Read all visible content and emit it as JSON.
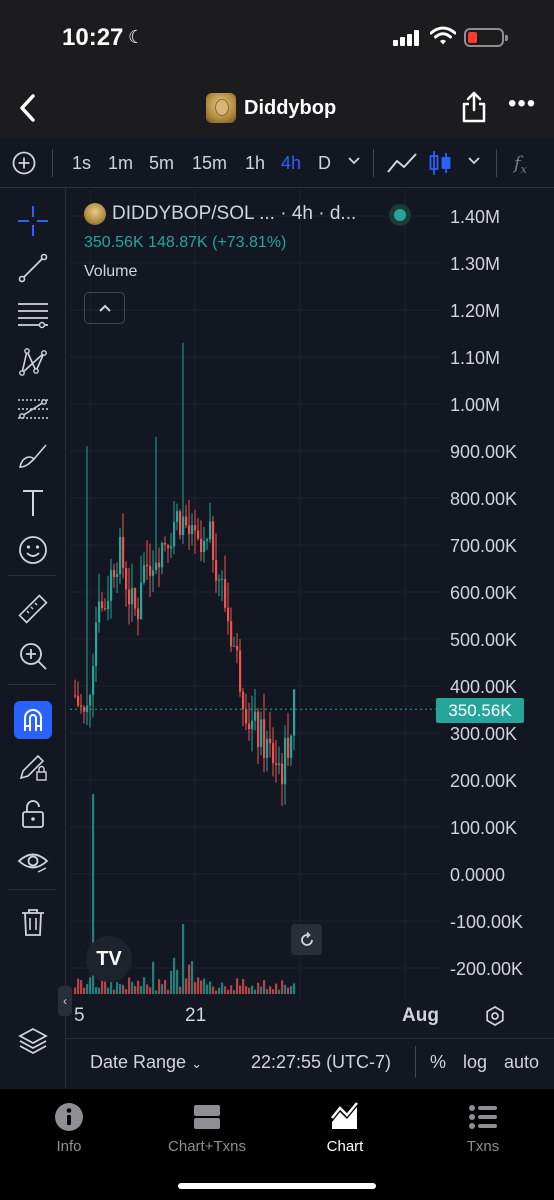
{
  "status_bar": {
    "time": "10:27"
  },
  "nav": {
    "title": "Diddybop"
  },
  "toolbar": {
    "intervals": [
      "1s",
      "1m",
      "5m",
      "15m",
      "1h",
      "4h",
      "D"
    ],
    "active_interval": "4h",
    "fx_label": "f"
  },
  "legend": {
    "symbol": "DIDDYBOP/SOL ... · 4h · d...",
    "values": "350.56K  148.87K (+73.81%)",
    "volume_label": "Volume"
  },
  "colors": {
    "up": "#26a69a",
    "down": "#ef5350",
    "accent": "#2962ff",
    "bg": "#131722"
  },
  "chart_data": {
    "type": "candlestick",
    "y_ticks": [
      "1.40M",
      "1.30M",
      "1.20M",
      "1.10M",
      "1.00M",
      "900.00K",
      "800.00K",
      "700.00K",
      "600.00K",
      "500.00K",
      "400.00K",
      "300.00K",
      "200.00K",
      "100.00K",
      "0.0000",
      "-100.00K",
      "-200.00K"
    ],
    "ylim": [
      -200000,
      1400000
    ],
    "x_ticks": [
      "5",
      "21",
      "Aug"
    ],
    "last_price": 350560,
    "last_price_label": "350.56K",
    "change_abs": "148.87K",
    "change_pct": "+73.81%"
  },
  "bottom": {
    "date_range": "Date Range",
    "clock": "22:27:55 (UTC-7)",
    "percent": "%",
    "log": "log",
    "auto": "auto"
  },
  "tabs": [
    {
      "label": "Info",
      "icon": "info-icon"
    },
    {
      "label": "Chart+Txns",
      "icon": "split-view-icon"
    },
    {
      "label": "Chart",
      "icon": "chart-icon"
    },
    {
      "label": "Txns",
      "icon": "list-icon"
    }
  ],
  "tv_logo": "TV"
}
